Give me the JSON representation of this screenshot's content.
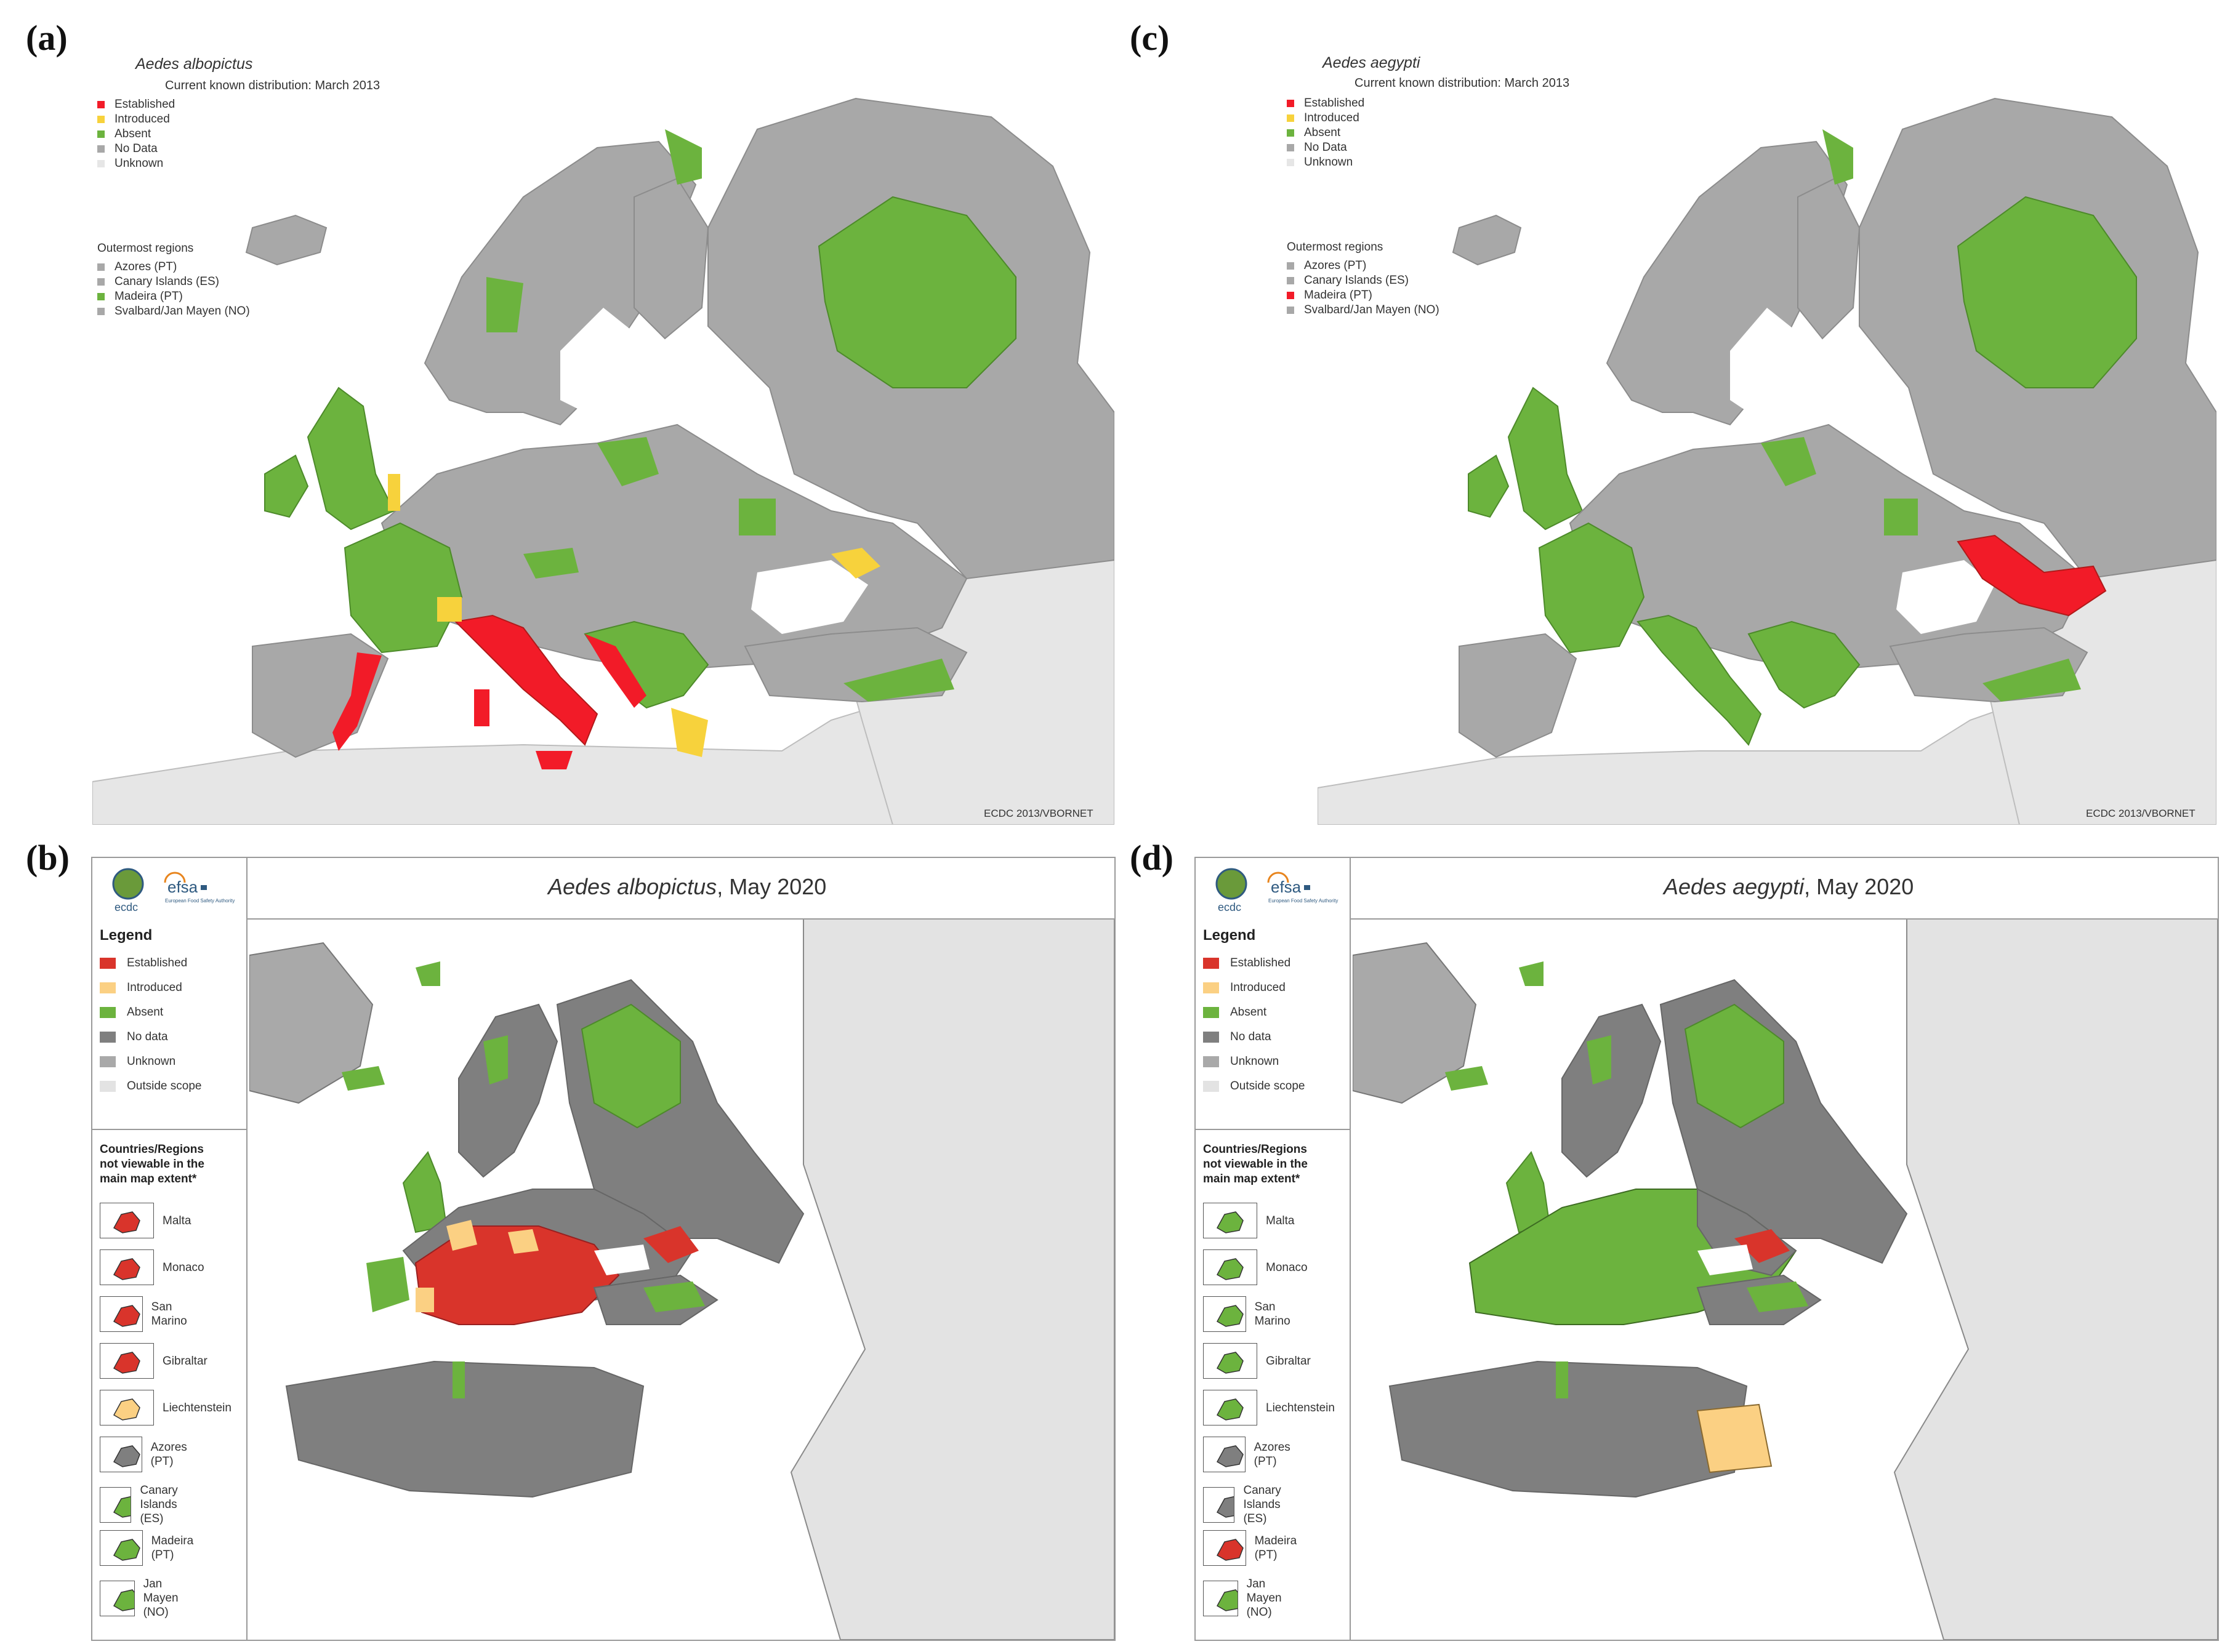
{
  "colors": {
    "established_top": "#f21b28",
    "introduced_top": "#f7d23c",
    "absent": "#6cb33e",
    "no_data_top": "#a8a8a8",
    "unknown_top": "#e6e6e6",
    "established_bottom": "#d9342b",
    "introduced_bottom": "#fbd083",
    "no_data_bottom": "#7f7f7f",
    "unknown_bottom": "#a9a9a9",
    "outside_scope": "#e3e3e3",
    "sea": "#ffffff"
  },
  "panel_a": {
    "letter": "(a)",
    "title": "Aedes albopictus",
    "subtitle": "Current known distribution: March 2013",
    "legend": [
      {
        "label": "Established",
        "color_key": "established_top"
      },
      {
        "label": "Introduced",
        "color_key": "introduced_top"
      },
      {
        "label": "Absent",
        "color_key": "absent"
      },
      {
        "label": "No Data",
        "color_key": "no_data_top"
      },
      {
        "label": "Unknown",
        "color_key": "unknown_top"
      }
    ],
    "outermost_title": "Outermost regions",
    "outermost": [
      {
        "label": "Azores (PT)",
        "color_key": "no_data_top"
      },
      {
        "label": "Canary Islands (ES)",
        "color_key": "no_data_top"
      },
      {
        "label": "Madeira (PT)",
        "color_key": "absent"
      },
      {
        "label": "Svalbard/Jan Mayen (NO)",
        "color_key": "no_data_top"
      }
    ],
    "credit": "ECDC 2013/VBORNET"
  },
  "panel_c": {
    "letter": "(c)",
    "title": "Aedes aegypti",
    "subtitle": "Current known distribution: March 2013",
    "legend": [
      {
        "label": "Established",
        "color_key": "established_top"
      },
      {
        "label": "Introduced",
        "color_key": "introduced_top"
      },
      {
        "label": "Absent",
        "color_key": "absent"
      },
      {
        "label": "No Data",
        "color_key": "no_data_top"
      },
      {
        "label": "Unknown",
        "color_key": "unknown_top"
      }
    ],
    "outermost_title": "Outermost regions",
    "outermost": [
      {
        "label": "Azores (PT)",
        "color_key": "no_data_top"
      },
      {
        "label": "Canary Islands (ES)",
        "color_key": "no_data_top"
      },
      {
        "label": "Madeira (PT)",
        "color_key": "established_top"
      },
      {
        "label": "Svalbard/Jan Mayen (NO)",
        "color_key": "no_data_top"
      }
    ],
    "credit": "ECDC 2013/VBORNET"
  },
  "panel_b": {
    "letter": "(b)",
    "title_species": "Aedes albopictus",
    "title_date": ", May 2020",
    "logos": [
      "ecdc",
      "efsa"
    ],
    "legend_heading": "Legend",
    "legend": [
      {
        "label": "Established",
        "color_key": "established_bottom"
      },
      {
        "label": "Introduced",
        "color_key": "introduced_bottom"
      },
      {
        "label": "Absent",
        "color_key": "absent"
      },
      {
        "label": "No data",
        "color_key": "no_data_bottom"
      },
      {
        "label": "Unknown",
        "color_key": "unknown_bottom"
      },
      {
        "label": "Outside scope",
        "color_key": "outside_scope"
      }
    ],
    "regions_heading": [
      "Countries/Regions",
      "not viewable in the",
      "main map extent*"
    ],
    "regions": [
      {
        "label": "Malta",
        "fill_key": "established_bottom"
      },
      {
        "label": "Monaco",
        "fill_key": "established_bottom"
      },
      {
        "label": "San Marino",
        "fill_key": "established_bottom"
      },
      {
        "label": "Gibraltar",
        "fill_key": "established_bottom"
      },
      {
        "label": "Liechtenstein",
        "fill_key": "introduced_bottom"
      },
      {
        "label": "Azores (PT)",
        "fill_key": "no_data_bottom"
      },
      {
        "label": "Canary Islands (ES)",
        "fill_key": "absent"
      },
      {
        "label": "Madeira (PT)",
        "fill_key": "absent"
      },
      {
        "label": "Jan Mayen (NO)",
        "fill_key": "absent"
      }
    ]
  },
  "panel_d": {
    "letter": "(d)",
    "title_species": "Aedes aegypti",
    "title_date": ", May 2020",
    "logos": [
      "ecdc",
      "efsa"
    ],
    "legend_heading": "Legend",
    "legend": [
      {
        "label": "Established",
        "color_key": "established_bottom"
      },
      {
        "label": "Introduced",
        "color_key": "introduced_bottom"
      },
      {
        "label": "Absent",
        "color_key": "absent"
      },
      {
        "label": "No data",
        "color_key": "no_data_bottom"
      },
      {
        "label": "Unknown",
        "color_key": "unknown_bottom"
      },
      {
        "label": "Outside scope",
        "color_key": "outside_scope"
      }
    ],
    "regions_heading": [
      "Countries/Regions",
      "not viewable in the",
      "main map extent*"
    ],
    "regions": [
      {
        "label": "Malta",
        "fill_key": "absent"
      },
      {
        "label": "Monaco",
        "fill_key": "absent"
      },
      {
        "label": "San Marino",
        "fill_key": "absent"
      },
      {
        "label": "Gibraltar",
        "fill_key": "absent"
      },
      {
        "label": "Liechtenstein",
        "fill_key": "absent"
      },
      {
        "label": "Azores (PT)",
        "fill_key": "no_data_bottom"
      },
      {
        "label": "Canary Islands (ES)",
        "fill_key": "no_data_bottom"
      },
      {
        "label": "Madeira (PT)",
        "fill_key": "established_bottom"
      },
      {
        "label": "Jan Mayen (NO)",
        "fill_key": "absent"
      }
    ]
  }
}
